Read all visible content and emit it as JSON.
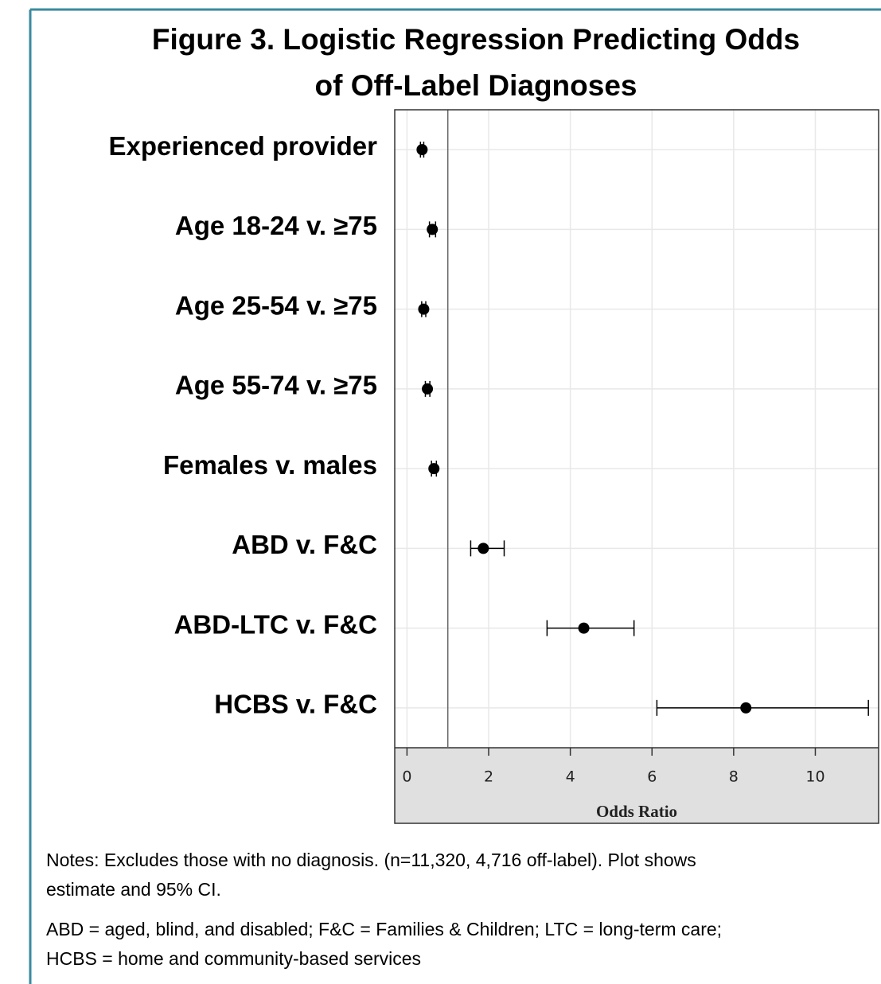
{
  "chart_data": {
    "type": "forest",
    "title": [
      "Figure 3. Logistic Regression Predicting Odds",
      "of Off-Label Diagnoses"
    ],
    "categories": [
      "Experienced provider",
      "Age 18-24 v. ≥75",
      "Age 25-54 v. ≥75",
      "Age 55-74 v. ≥75",
      "Females v. males",
      "ABD v. F&C",
      "ABD-LTC v. F&C",
      "HCBS v. F&C"
    ],
    "series": [
      {
        "color": "#000000",
        "values": [
          0.37,
          0.62,
          0.41,
          0.5,
          0.66,
          1.87,
          4.33,
          8.3
        ],
        "lower": [
          0.33,
          0.55,
          0.36,
          0.45,
          0.6,
          1.56,
          3.43,
          6.12
        ],
        "upper": [
          0.41,
          0.7,
          0.46,
          0.56,
          0.72,
          2.38,
          5.56,
          11.3
        ]
      }
    ],
    "x_label": "Odds Ratio",
    "xlim": [
      -0.3,
      11.55
    ],
    "xticks": [
      0,
      2,
      4,
      6,
      8,
      10
    ],
    "reference_line": 1,
    "grid": true,
    "notes": [
      "Notes: Excludes those with no diagnosis. (n=11,320, 4,716 off-label). Plot shows",
      "estimate and 95% CI.",
      "ABD = aged, blind, and disabled; F&C = Families & Children;  LTC = long-term care;",
      "HCBS = home and community-based services"
    ]
  }
}
